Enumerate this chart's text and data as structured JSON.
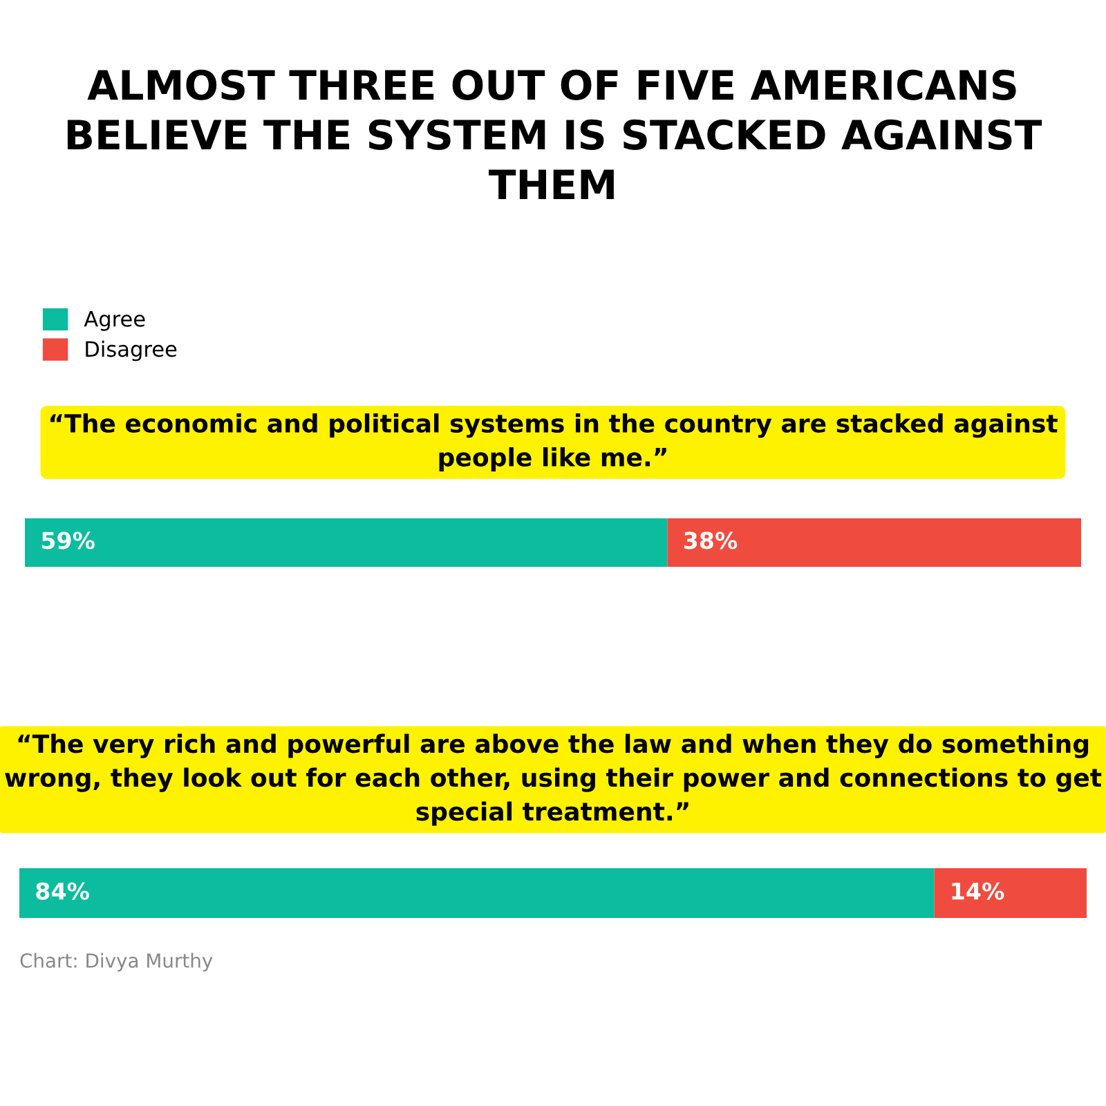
{
  "chart_data": [
    {
      "type": "bar",
      "orientation": "horizontal",
      "stacked": true,
      "title": "ALMOST THREE OUT OF FIVE AMERICANS BELIEVE THE SYSTEM IS STACKED AGAINST THEM",
      "subtitle": "“The economic and political systems in the country are stacked against people like me.”",
      "categories": [
        null
      ],
      "legend": "top left",
      "series": [
        {
          "name": "Agree",
          "color": "#0bbc9f",
          "values": [
            59
          ],
          "value_labels": [
            "59%"
          ]
        },
        {
          "name": "Disagree",
          "color": "#ef4b3f",
          "values": [
            38
          ],
          "value_labels": [
            "38%"
          ]
        }
      ]
    },
    {
      "type": "bar",
      "orientation": "horizontal",
      "stacked": true,
      "subtitle": "“The very rich and powerful are above the law and when they do something wrong, they look out for each other, using their power and connections to get special treatment.”",
      "categories": [
        null
      ],
      "annotations": [
        "Chart: Divya Murthy"
      ],
      "series": [
        {
          "color": "#0bbc9f",
          "values": [
            84
          ],
          "value_labels": [
            "84%"
          ]
        },
        {
          "color": "#ef4b3f",
          "values": [
            14
          ],
          "value_labels": [
            "14%"
          ]
        }
      ]
    }
  ]
}
